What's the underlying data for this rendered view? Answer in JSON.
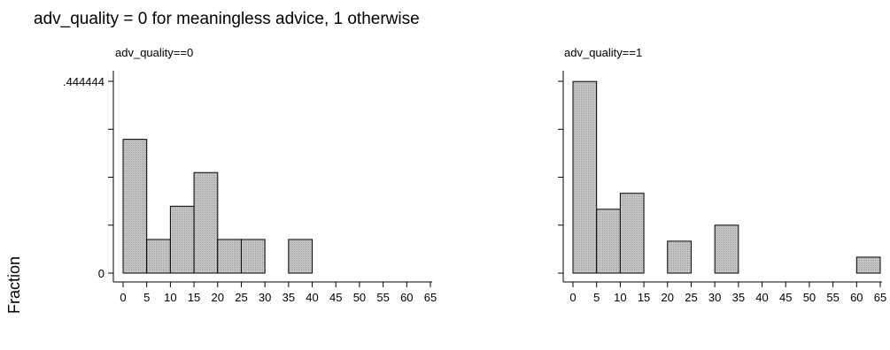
{
  "figure": {
    "title": "adv_quality = 0 for meaningless advice, 1 otherwise",
    "ylabel": "Fraction"
  },
  "chart_data": [
    {
      "type": "bar",
      "title": "adv_quality==0",
      "ylabel": "Fraction",
      "xlim": [
        0,
        65
      ],
      "ylim": [
        0,
        0.444444
      ],
      "x_ticks": [
        "0",
        "5",
        "10",
        "15",
        "20",
        "25",
        "30",
        "35",
        "40",
        "45",
        "50",
        "55",
        "60",
        "65"
      ],
      "y_tick_labels": [
        {
          "value": 0.444444,
          "label": ".444444"
        },
        {
          "value": 0,
          "label": "0"
        }
      ],
      "y_minor_ticks": [
        0.111111,
        0.222222,
        0.333333
      ],
      "bin_width": 5,
      "bars": [
        {
          "x": 0,
          "value": 0.31
        },
        {
          "x": 5,
          "value": 0.078
        },
        {
          "x": 10,
          "value": 0.155
        },
        {
          "x": 15,
          "value": 0.233
        },
        {
          "x": 20,
          "value": 0.078
        },
        {
          "x": 25,
          "value": 0.078
        },
        {
          "x": 35,
          "value": 0.078
        }
      ]
    },
    {
      "type": "bar",
      "title": "adv_quality==1",
      "ylabel": "Fraction",
      "xlim": [
        0,
        65
      ],
      "ylim": [
        0,
        0.444444
      ],
      "x_ticks": [
        "0",
        "5",
        "10",
        "15",
        "20",
        "25",
        "30",
        "35",
        "40",
        "45",
        "50",
        "55",
        "60",
        "65"
      ],
      "y_tick_labels": [],
      "y_minor_ticks": [
        0,
        0.111111,
        0.222222,
        0.333333,
        0.444444
      ],
      "bin_width": 5,
      "bars": [
        {
          "x": 0,
          "value": 0.444
        },
        {
          "x": 5,
          "value": 0.148
        },
        {
          "x": 10,
          "value": 0.185
        },
        {
          "x": 20,
          "value": 0.074
        },
        {
          "x": 30,
          "value": 0.111
        },
        {
          "x": 60,
          "value": 0.037
        }
      ]
    }
  ]
}
